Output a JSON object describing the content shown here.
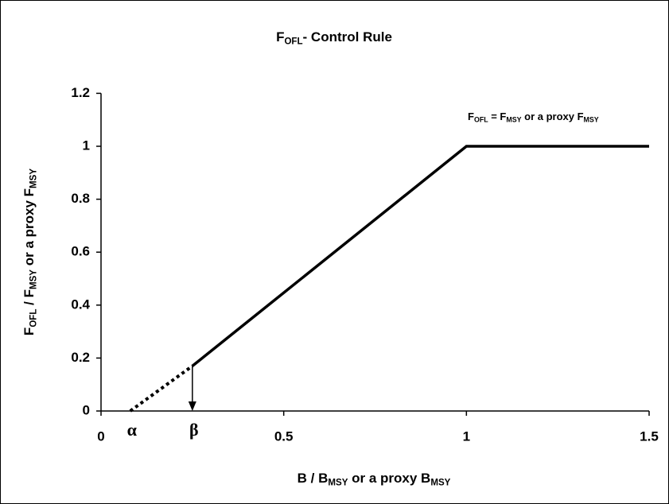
{
  "chart_data": {
    "type": "line",
    "title": [
      "F",
      "OFL",
      "- Control Rule"
    ],
    "y_label": [
      "F",
      "OFL",
      " / F",
      "MSY",
      " or a proxy F",
      "MSY"
    ],
    "x_label": [
      "B / B",
      "MSY",
      " or a proxy B",
      "MSY"
    ],
    "annotation": [
      "F",
      "OFL",
      " = F",
      "MSY",
      " or a proxy F",
      "MSY"
    ],
    "xlim": [
      0,
      1.5
    ],
    "ylim": [
      0,
      1.2
    ],
    "xticks": [
      0,
      0.5,
      1,
      1.5
    ],
    "yticks": [
      0,
      0.2,
      0.4,
      0.6,
      0.8,
      1,
      1.2
    ],
    "grid": false,
    "series": [
      {
        "x": [
          0.08,
          0.25
        ],
        "values": [
          0,
          0.17
        ],
        "color": "#000000",
        "style": "dotted"
      },
      {
        "x": [
          0.25,
          1,
          1.5
        ],
        "values": [
          0.17,
          1,
          1
        ],
        "color": "#000000",
        "style": "solid"
      }
    ],
    "point_labels": [
      {
        "x": 0.08,
        "label": "α"
      },
      {
        "x": 0.25,
        "label": "β"
      }
    ]
  }
}
